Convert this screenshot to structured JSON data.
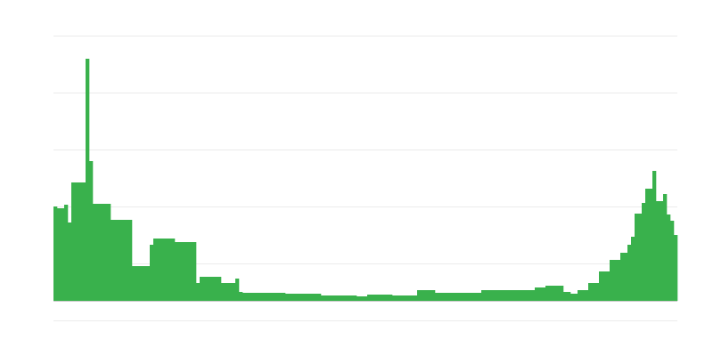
{
  "chart_data": {
    "type": "bar",
    "title": "",
    "xlabel": "",
    "ylabel": "",
    "ylim": [
      0,
      298
    ],
    "grid": true,
    "bar_color": "#39b14c",
    "grid_color": "#ebebeb",
    "values": [
      106,
      104,
      104,
      108,
      88,
      133,
      133,
      133,
      133,
      272,
      157,
      109,
      109,
      109,
      109,
      109,
      91,
      91,
      91,
      91,
      91,
      91,
      39,
      39,
      39,
      39,
      39,
      63,
      70,
      70,
      70,
      70,
      70,
      70,
      66,
      66,
      66,
      66,
      66,
      66,
      20,
      27,
      27,
      27,
      27,
      27,
      27,
      20,
      20,
      20,
      20,
      25,
      10,
      9,
      9,
      9,
      9,
      9,
      9,
      9,
      9,
      9,
      9,
      9,
      9,
      8,
      8,
      8,
      8,
      8,
      8,
      8,
      8,
      8,
      8,
      6,
      6,
      6,
      6,
      6,
      6,
      6,
      6,
      6,
      6,
      5,
      5,
      5,
      7,
      7,
      7,
      7,
      7,
      7,
      7,
      6,
      6,
      6,
      6,
      6,
      6,
      6,
      12,
      12,
      12,
      12,
      12,
      9,
      9,
      9,
      9,
      9,
      9,
      9,
      9,
      9,
      9,
      9,
      9,
      9,
      12,
      12,
      12,
      12,
      12,
      12,
      12,
      12,
      12,
      12,
      12,
      12,
      12,
      12,
      12,
      15,
      15,
      15,
      17,
      17,
      17,
      17,
      17,
      10,
      10,
      8,
      8,
      12,
      12,
      12,
      20,
      20,
      20,
      33,
      33,
      33,
      46,
      46,
      46,
      54,
      54,
      63,
      72,
      98,
      98,
      110,
      126,
      126,
      146,
      112,
      112,
      120,
      97,
      90,
      74
    ]
  }
}
